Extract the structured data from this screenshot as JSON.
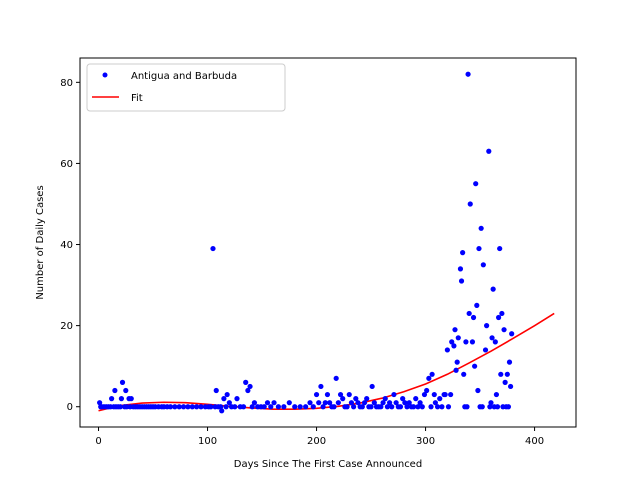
{
  "chart_data": {
    "type": "scatter",
    "title": "",
    "xlabel": "Days Since The First Case Announced",
    "ylabel": "Number of Daily Cases",
    "xlim": [
      -17,
      438
    ],
    "ylim": [
      -5,
      86
    ],
    "xticks": [
      0,
      100,
      200,
      300,
      400
    ],
    "yticks": [
      0,
      20,
      40,
      60,
      80
    ],
    "grid": false,
    "legend_position": "upper-left",
    "series": [
      {
        "name": "Antigua and Barbuda",
        "style": "points",
        "color": "#0000ff",
        "points": [
          [
            1,
            1
          ],
          [
            2,
            0
          ],
          [
            3,
            0
          ],
          [
            5,
            0
          ],
          [
            7,
            0
          ],
          [
            9,
            0
          ],
          [
            11,
            0
          ],
          [
            12,
            2
          ],
          [
            14,
            0
          ],
          [
            15,
            4
          ],
          [
            16,
            0
          ],
          [
            18,
            0
          ],
          [
            20,
            0
          ],
          [
            21,
            2
          ],
          [
            22,
            6
          ],
          [
            24,
            0
          ],
          [
            25,
            4
          ],
          [
            26,
            0
          ],
          [
            28,
            2
          ],
          [
            29,
            0
          ],
          [
            30,
            2
          ],
          [
            32,
            0
          ],
          [
            34,
            0
          ],
          [
            36,
            0
          ],
          [
            38,
            0
          ],
          [
            40,
            0
          ],
          [
            42,
            0
          ],
          [
            44,
            0
          ],
          [
            46,
            0
          ],
          [
            48,
            0
          ],
          [
            50,
            0
          ],
          [
            52,
            0
          ],
          [
            55,
            0
          ],
          [
            58,
            0
          ],
          [
            60,
            0
          ],
          [
            63,
            0
          ],
          [
            66,
            0
          ],
          [
            70,
            0
          ],
          [
            74,
            0
          ],
          [
            78,
            0
          ],
          [
            82,
            0
          ],
          [
            86,
            0
          ],
          [
            90,
            0
          ],
          [
            94,
            0
          ],
          [
            98,
            0
          ],
          [
            101,
            0
          ],
          [
            103,
            0
          ],
          [
            105,
            39
          ],
          [
            107,
            0
          ],
          [
            108,
            4
          ],
          [
            110,
            0
          ],
          [
            112,
            0
          ],
          [
            113,
            -1
          ],
          [
            115,
            2
          ],
          [
            117,
            0
          ],
          [
            118,
            3
          ],
          [
            120,
            1
          ],
          [
            122,
            0
          ],
          [
            125,
            0
          ],
          [
            127,
            2
          ],
          [
            130,
            0
          ],
          [
            133,
            0
          ],
          [
            135,
            6
          ],
          [
            137,
            4
          ],
          [
            139,
            5
          ],
          [
            141,
            0
          ],
          [
            143,
            1
          ],
          [
            146,
            0
          ],
          [
            149,
            0
          ],
          [
            152,
            0
          ],
          [
            155,
            1
          ],
          [
            158,
            0
          ],
          [
            161,
            1
          ],
          [
            165,
            0
          ],
          [
            170,
            0
          ],
          [
            175,
            1
          ],
          [
            180,
            0
          ],
          [
            185,
            0
          ],
          [
            190,
            0
          ],
          [
            194,
            1
          ],
          [
            197,
            0
          ],
          [
            200,
            3
          ],
          [
            202,
            1
          ],
          [
            204,
            5
          ],
          [
            206,
            0
          ],
          [
            208,
            1
          ],
          [
            210,
            3
          ],
          [
            212,
            1
          ],
          [
            214,
            0
          ],
          [
            216,
            0
          ],
          [
            218,
            7
          ],
          [
            220,
            1
          ],
          [
            222,
            3
          ],
          [
            224,
            2
          ],
          [
            226,
            0
          ],
          [
            228,
            0
          ],
          [
            230,
            3
          ],
          [
            232,
            1
          ],
          [
            234,
            0
          ],
          [
            236,
            2
          ],
          [
            238,
            1
          ],
          [
            240,
            0
          ],
          [
            242,
            0
          ],
          [
            244,
            1
          ],
          [
            246,
            2
          ],
          [
            248,
            0
          ],
          [
            250,
            0
          ],
          [
            251,
            5
          ],
          [
            253,
            1
          ],
          [
            255,
            0
          ],
          [
            257,
            0
          ],
          [
            259,
            0
          ],
          [
            261,
            1
          ],
          [
            263,
            2
          ],
          [
            265,
            0
          ],
          [
            267,
            1
          ],
          [
            269,
            0
          ],
          [
            271,
            3
          ],
          [
            273,
            1
          ],
          [
            275,
            0
          ],
          [
            277,
            0
          ],
          [
            279,
            2
          ],
          [
            281,
            1
          ],
          [
            283,
            0
          ],
          [
            285,
            1
          ],
          [
            287,
            0
          ],
          [
            289,
            0
          ],
          [
            291,
            2
          ],
          [
            293,
            0
          ],
          [
            295,
            1
          ],
          [
            297,
            0
          ],
          [
            299,
            3
          ],
          [
            301,
            4
          ],
          [
            303,
            7
          ],
          [
            305,
            0
          ],
          [
            306,
            8
          ],
          [
            308,
            3
          ],
          [
            309,
            1
          ],
          [
            311,
            0
          ],
          [
            313,
            2
          ],
          [
            315,
            0
          ],
          [
            317,
            3
          ],
          [
            318,
            3
          ],
          [
            320,
            14
          ],
          [
            321,
            0
          ],
          [
            323,
            3
          ],
          [
            324,
            16
          ],
          [
            326,
            15
          ],
          [
            327,
            19
          ],
          [
            328,
            9
          ],
          [
            329,
            11
          ],
          [
            330,
            17
          ],
          [
            332,
            34
          ],
          [
            333,
            31
          ],
          [
            334,
            38
          ],
          [
            335,
            8
          ],
          [
            336,
            0
          ],
          [
            337,
            16
          ],
          [
            338,
            0
          ],
          [
            339,
            82
          ],
          [
            340,
            23
          ],
          [
            341,
            50
          ],
          [
            343,
            16
          ],
          [
            344,
            22
          ],
          [
            345,
            10
          ],
          [
            346,
            55
          ],
          [
            347,
            25
          ],
          [
            348,
            4
          ],
          [
            349,
            39
          ],
          [
            350,
            0
          ],
          [
            351,
            44
          ],
          [
            352,
            0
          ],
          [
            353,
            35
          ],
          [
            355,
            14
          ],
          [
            356,
            20
          ],
          [
            358,
            63
          ],
          [
            359,
            0
          ],
          [
            360,
            1
          ],
          [
            361,
            17
          ],
          [
            362,
            29
          ],
          [
            363,
            0
          ],
          [
            364,
            16
          ],
          [
            365,
            3
          ],
          [
            366,
            0
          ],
          [
            367,
            22
          ],
          [
            368,
            39
          ],
          [
            369,
            8
          ],
          [
            370,
            23
          ],
          [
            371,
            0
          ],
          [
            372,
            19
          ],
          [
            373,
            6
          ],
          [
            374,
            0
          ],
          [
            375,
            8
          ],
          [
            376,
            0
          ],
          [
            377,
            11
          ],
          [
            378,
            5
          ],
          [
            379,
            18
          ]
        ]
      },
      {
        "name": "Fit",
        "style": "line",
        "color": "#ff0000",
        "x": [
          0,
          20,
          40,
          60,
          80,
          100,
          120,
          140,
          160,
          180,
          200,
          220,
          240,
          260,
          280,
          300,
          320,
          340,
          360,
          380,
          400,
          418
        ],
        "y": [
          -1.0,
          0.3,
          0.9,
          1.1,
          1.0,
          0.6,
          0.1,
          -0.3,
          -0.6,
          -0.6,
          -0.4,
          0.1,
          0.9,
          2.1,
          3.7,
          5.6,
          8.0,
          10.8,
          13.7,
          16.8,
          20.0,
          23.0
        ]
      }
    ]
  }
}
